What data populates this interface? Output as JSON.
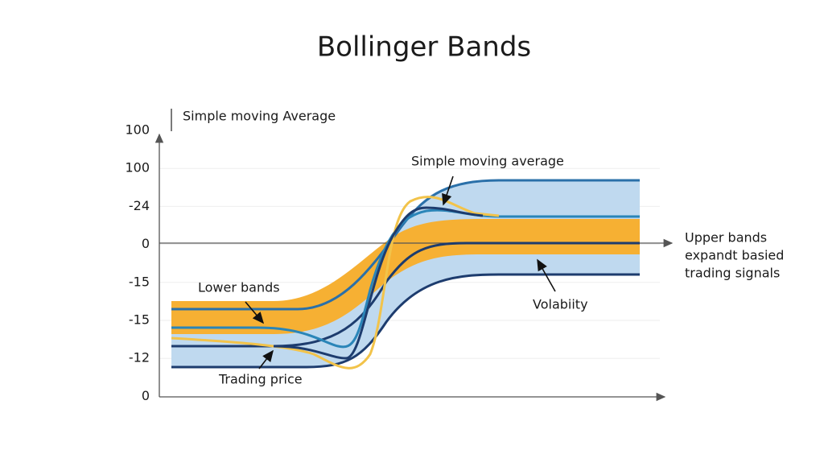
{
  "title": "Bollinger Bands",
  "axis_label": "Simple moving Average",
  "y_labels": [
    "100",
    "100",
    "-24",
    "0",
    "-15",
    "-15",
    "-12",
    "0"
  ],
  "annotations": {
    "simple_moving_average": "Simple moving average",
    "upper_bands": [
      "Upper bands",
      "expandt basied",
      "trading signals"
    ],
    "lower_bands": "Lower bands",
    "volatility": "Volabiity",
    "trading_price": "Trading price"
  }
}
